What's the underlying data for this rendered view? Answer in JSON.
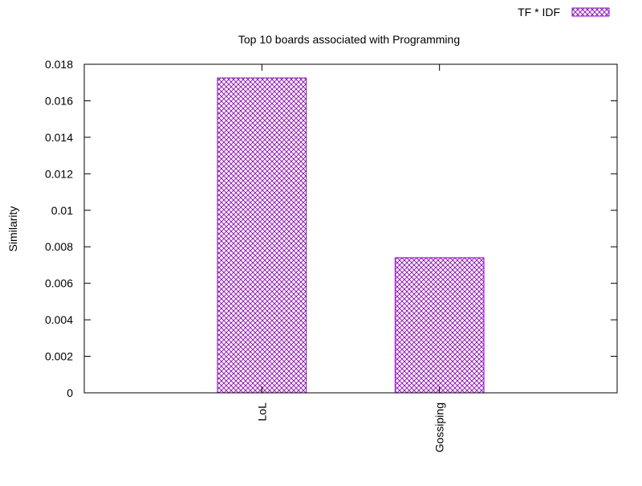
{
  "chart_data": {
    "type": "bar",
    "title": "Top 10 boards associated with Programming",
    "xlabel": "",
    "ylabel": "Similarity",
    "categories": [
      "LoL",
      "Gossiping"
    ],
    "series": [
      {
        "name": "TF * IDF",
        "values": [
          0.01725,
          0.0074
        ]
      }
    ],
    "ylim": [
      0,
      0.018
    ],
    "yticks": [
      "0",
      "0.002",
      "0.004",
      "0.006",
      "0.008",
      "0.01",
      "0.012",
      "0.014",
      "0.016",
      "0.018"
    ],
    "grid": false,
    "legend_position": "top-right",
    "bar_pattern": "crosshatch",
    "colors": {
      "bar_stroke": "#9400d3",
      "axis": "#000000",
      "background": "#ffffff"
    }
  }
}
